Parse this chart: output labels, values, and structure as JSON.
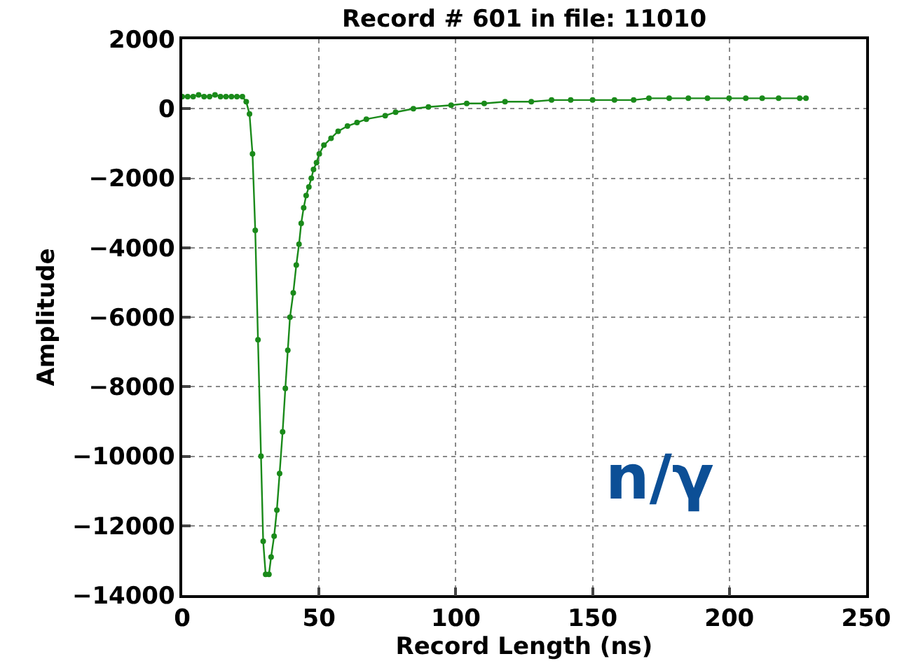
{
  "chart_data": {
    "type": "line",
    "title": "Record # 601 in file: 11010",
    "xlabel": "Record Length (ns)",
    "ylabel": "Amplitude",
    "annotations": [
      "n/γ"
    ],
    "series": [
      {
        "color": "#1a8a1a",
        "x": [
          0,
          2,
          4,
          6,
          8,
          10,
          12,
          14,
          16,
          18,
          20,
          22,
          23.4,
          24.6,
          25.7,
          26.7,
          27.7,
          28.8,
          29.6,
          30.5,
          31.7,
          32.5,
          33.6,
          34.6,
          35.6,
          36.7,
          37.7,
          38.6,
          39.4,
          40.6,
          41.7,
          42.7,
          43.5,
          44.4,
          45.3,
          46.3,
          47.2,
          48,
          49.1,
          50.1,
          51.8,
          54.4,
          57,
          60.4,
          63.9,
          67.3,
          74.2,
          78,
          84.5,
          90,
          98.3,
          104,
          110.4,
          118,
          127.6,
          135,
          142,
          150,
          158,
          165,
          170.6,
          178,
          185,
          192,
          199.9,
          206,
          212,
          218,
          225.7,
          228
        ],
        "values": [
          350,
          350,
          350,
          400,
          350,
          350,
          400,
          350,
          350,
          350,
          350,
          350,
          200,
          -150,
          -1300,
          -3500,
          -6650,
          -10000,
          -12450,
          -13400,
          -13400,
          -12900,
          -12300,
          -11550,
          -10500,
          -9300,
          -8050,
          -6950,
          -6000,
          -5300,
          -4500,
          -3900,
          -3300,
          -2850,
          -2500,
          -2250,
          -2000,
          -1750,
          -1550,
          -1300,
          -1050,
          -850,
          -650,
          -500,
          -400,
          -300,
          -200,
          -100,
          0,
          50,
          100,
          150,
          150,
          200,
          200,
          250,
          250,
          250,
          250,
          250,
          300,
          300,
          300,
          300,
          300,
          300,
          300,
          300,
          300,
          300
        ]
      }
    ],
    "xlim": [
      0,
      250
    ],
    "xticks": [
      0,
      50,
      100,
      150,
      200,
      250
    ],
    "ylim": [
      -14000,
      2000
    ],
    "yticks": [
      {
        "value": -14000,
        "label": "−14000"
      },
      {
        "value": -12000,
        "label": "−12000"
      },
      {
        "value": -10000,
        "label": "−10000"
      },
      {
        "value": -8000,
        "label": "−8000"
      },
      {
        "value": -6000,
        "label": "−6000"
      },
      {
        "value": -4000,
        "label": "−4000"
      },
      {
        "value": -2000,
        "label": "−2000"
      },
      0,
      2000
    ],
    "grid": true,
    "marker": "circle",
    "line_style": "solid"
  }
}
